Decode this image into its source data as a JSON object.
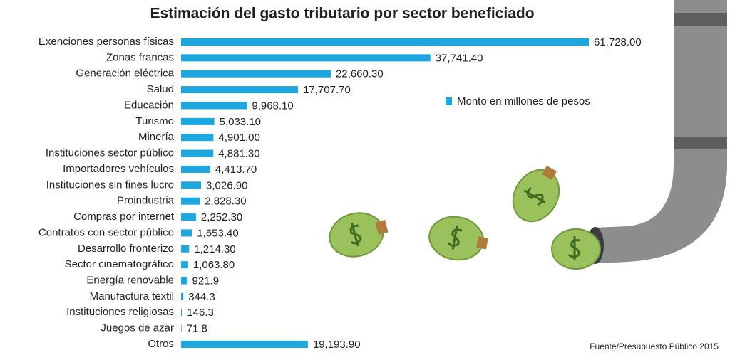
{
  "chart_data": {
    "type": "bar",
    "title": "Estimación del gasto tributario por sector beneficiado",
    "categories": [
      "Exenciones personas físicas",
      "Zonas francas",
      "Generación eléctrica",
      "Salud",
      "Educación",
      "Turismo",
      "Minería",
      "Instituciones sector público",
      "Importadores vehículos",
      "Instituciones sin fines lucro",
      "Proindustria",
      "Compras por internet",
      "Contratos con sector público",
      "Desarrollo fronterizo",
      "Sector cinematográfico",
      "Energía renovable",
      "Manufactura textil",
      "Instituciones religiosas",
      "Juegos de azar",
      "Otros"
    ],
    "series": [
      {
        "name": "Monto en millones de pesos",
        "color": "#1ca7e0",
        "values": [
          61728,
          37741.4,
          22660.3,
          17707.7,
          9968.1,
          5033.1,
          4901,
          4881.3,
          4413.7,
          3026.9,
          2828.3,
          2252.3,
          1653.4,
          1214.3,
          1063.8,
          921.9,
          344.3,
          146.3,
          71.8,
          19193.9
        ],
        "value_labels": [
          "61,728.00",
          "37,741.40",
          "22,660.30",
          "17,707.70",
          "9,968.10",
          "5,033.10",
          "4,901.00",
          "4,881.30",
          "4,413.70",
          "3,026.90",
          "2,828.30",
          "2,252.30",
          "1,653.40",
          "1,214.30",
          "1,063.80",
          "921.9",
          "344.3",
          "146.3",
          "71.8",
          "19,193.90"
        ]
      }
    ],
    "source": "Fuente/Presupuesto Público 2015"
  }
}
